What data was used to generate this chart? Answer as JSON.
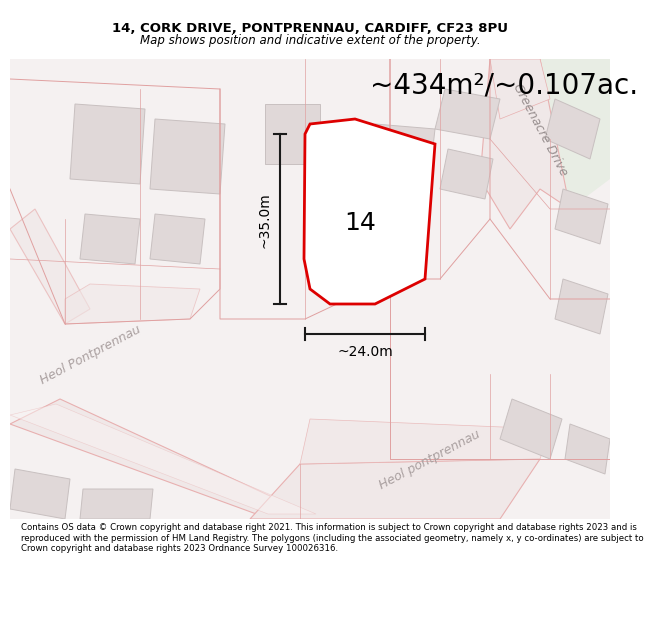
{
  "title_line1": "14, CORK DRIVE, PONTPRENNAU, CARDIFF, CF23 8PU",
  "title_line2": "Map shows position and indicative extent of the property.",
  "area_text": "~434m²/~0.107ac.",
  "number_label": "14",
  "dim_width": "~24.0m",
  "dim_height": "~35.0m",
  "map_bg": "#f7f4f4",
  "road_outline_color": "#e8b0b0",
  "road_fill_color": "#f0e8e8",
  "building_fill": "#e0d8d8",
  "building_outline": "#c8c0c0",
  "property_outline_color": "#dd0000",
  "property_fill": "#ffffff",
  "dim_line_color": "#1a1a1a",
  "road_text_color": "#aaa0a0",
  "greenacre_text_color": "#999090",
  "footer_text": "Contains OS data © Crown copyright and database right 2021. This information is subject to Crown copyright and database rights 2023 and is reproduced with the permission of HM Land Registry. The polygons (including the associated geometry, namely x, y co-ordinates) are subject to Crown copyright and database rights 2023 Ordnance Survey 100026316.",
  "greenacre_text": "Greenacre Drive",
  "heol_text1": "Heol Pontprennau",
  "heol_text2": "Heol pontprennau",
  "title_fontsize": 9.5,
  "subtitle_fontsize": 8.5,
  "area_fontsize": 20,
  "number_fontsize": 18,
  "road_label_fontsize": 9,
  "greenacre_fontsize": 9,
  "dim_fontsize": 10,
  "footer_fontsize": 6.2,
  "green_area_color": "#e8ede4"
}
